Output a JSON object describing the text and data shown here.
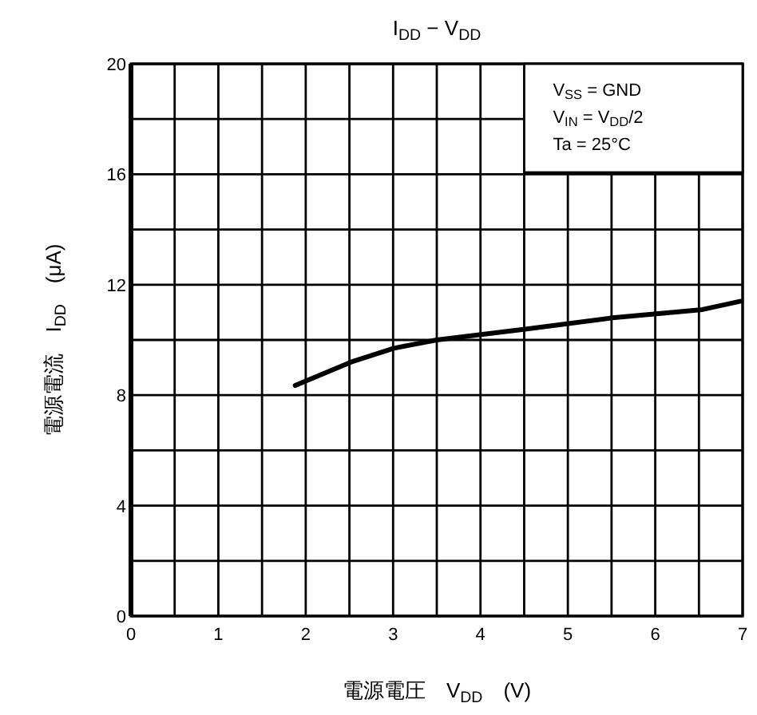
{
  "chart_data": {
    "type": "line",
    "title": "I$_{DD}$ − V$_{DD}$",
    "xlabel": "電源電圧　V$_{DD}$　(V)",
    "ylabel": "電源電流　I$_{DD}$　(μA)",
    "annotations": [
      "V$_{SS}$ = GND",
      "V$_{IN}$ = V$_{DD}$/2",
      "Ta = 25°C"
    ],
    "series": [
      {
        "color": "#000000",
        "x": [
          1.88,
          2.52,
          3.01,
          3.5,
          4.53,
          5.51,
          6.54,
          6.97
        ],
        "values": [
          8.35,
          9.2,
          9.7,
          10.0,
          10.4,
          10.8,
          11.1,
          11.4
        ]
      }
    ],
    "xlim": [
      0,
      7
    ],
    "ylim": [
      0,
      20
    ],
    "xticks": [
      0,
      {
        "value": 0.5,
        "label": null
      },
      1,
      {
        "value": 1.5,
        "label": null
      },
      2,
      {
        "value": 2.5,
        "label": null
      },
      3,
      {
        "value": 3.5,
        "label": null
      },
      4,
      {
        "value": 4.5,
        "label": null
      },
      5,
      {
        "value": 5.5,
        "label": null
      },
      6,
      {
        "value": 6.5,
        "label": null
      },
      7
    ],
    "yticks": [
      0,
      {
        "value": 2,
        "label": null
      },
      4,
      {
        "value": 6,
        "label": null
      },
      8,
      {
        "value": 10,
        "label": null
      },
      12,
      {
        "value": 14,
        "label": null
      },
      16,
      {
        "value": 18,
        "label": null
      },
      20
    ],
    "grid": true,
    "marker": "none",
    "line_style": "solid"
  }
}
